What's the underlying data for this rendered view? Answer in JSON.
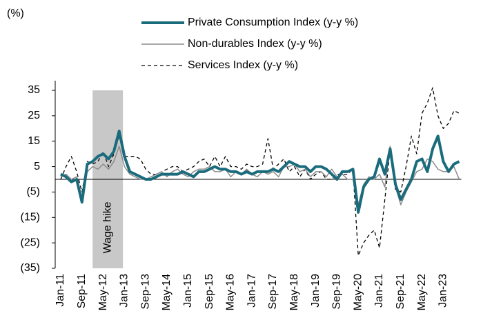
{
  "chart_data": {
    "type": "line",
    "unit_label": "(%)",
    "categories": [
      "Jan-11",
      null,
      null,
      null,
      "Sep-11",
      null,
      null,
      null,
      "May-12",
      null,
      null,
      null,
      "Jan-13",
      null,
      null,
      null,
      "Sep-13",
      null,
      null,
      null,
      "May-14",
      null,
      null,
      null,
      "Jan-15",
      null,
      null,
      null,
      "Sep-15",
      null,
      null,
      null,
      "May-16",
      null,
      null,
      null,
      "Jan-17",
      null,
      null,
      null,
      "Sep-17",
      null,
      null,
      null,
      "May-18",
      null,
      null,
      null,
      "Jan-19",
      null,
      null,
      null,
      "Sep-19",
      null,
      null,
      null,
      "May-20",
      null,
      null,
      null,
      "Jan-21",
      null,
      null,
      null,
      "Sep-21",
      null,
      null,
      null,
      "May-22",
      null,
      null,
      null,
      "Jan-23",
      null,
      null,
      null
    ],
    "series": [
      {
        "name": "Private Consumption Index (y-y %)",
        "color": "#1a6b7c",
        "width": 4,
        "dash": "none",
        "values": [
          2,
          1,
          -1,
          0,
          -9,
          6,
          7,
          9,
          10,
          8,
          11,
          19,
          9,
          3,
          2,
          1,
          0,
          0,
          1,
          2,
          2,
          2,
          2,
          3,
          2,
          1,
          3,
          3,
          4,
          5,
          4,
          4,
          3,
          3,
          2,
          3,
          2,
          3,
          3,
          3,
          4,
          3,
          5,
          7,
          6,
          5,
          5,
          3,
          5,
          5,
          4,
          2,
          0,
          3,
          3,
          4,
          -13,
          -3,
          0,
          1,
          8,
          2,
          12,
          -2,
          -8,
          -4,
          0,
          7,
          8,
          3,
          12,
          17,
          7,
          3,
          6,
          7
        ]
      },
      {
        "name": "Non-durables Index (y-y %)",
        "color": "#8c8c8c",
        "width": 1.5,
        "dash": "none",
        "values": [
          1,
          2,
          0,
          1,
          -8,
          3,
          5,
          4,
          6,
          4,
          7,
          13,
          5,
          2,
          1,
          0,
          0,
          1,
          2,
          3,
          1,
          3,
          4,
          2,
          1,
          3,
          4,
          4,
          5,
          3,
          3,
          4,
          1,
          3,
          2,
          4,
          2,
          1,
          3,
          2,
          3,
          1,
          5,
          5,
          6,
          3,
          4,
          1,
          3,
          3,
          1,
          4,
          1,
          2,
          0,
          0,
          -10,
          -2,
          1,
          0,
          2,
          -3,
          13,
          -3,
          -10,
          -5,
          -1,
          3,
          4,
          8,
          7,
          4,
          3,
          3,
          5,
          0
        ]
      },
      {
        "name": "Services Index (y-y %)",
        "color": "#000000",
        "width": 1.3,
        "dash": "5 4",
        "values": [
          0,
          5,
          9,
          3,
          -5,
          7,
          6,
          7,
          11,
          5,
          10,
          17,
          9,
          9,
          9,
          8,
          4,
          2,
          2,
          3,
          4,
          5,
          5,
          3,
          4,
          5,
          7,
          8,
          5,
          9,
          5,
          9,
          5,
          5,
          4,
          6,
          5,
          5,
          6,
          16,
          4,
          6,
          8,
          3,
          5,
          1,
          4,
          0,
          2,
          3,
          0,
          0,
          2,
          2,
          2,
          4,
          -30,
          -25,
          -22,
          -20,
          -27,
          -8,
          12,
          -4,
          -5,
          5,
          17,
          10,
          26,
          30,
          36,
          25,
          20,
          22,
          27,
          26
        ]
      }
    ],
    "shade": {
      "label": "Wage hike",
      "xrange": [
        6,
        11.7
      ],
      "color": "#c8c8c8"
    },
    "ylim": [
      -35,
      35
    ],
    "yticks": [
      35,
      25,
      15,
      5,
      {
        "value": -5,
        "label": "(5)"
      },
      {
        "value": -15,
        "label": "(15)"
      },
      {
        "value": -25,
        "label": "(25)"
      },
      {
        "value": -35,
        "label": "(35)"
      }
    ],
    "legend": "top"
  }
}
